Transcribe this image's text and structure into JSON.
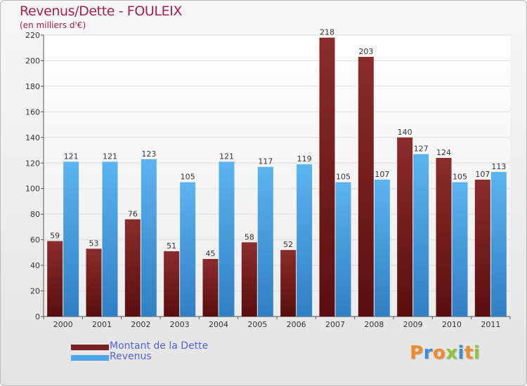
{
  "title": "Revenus/Dette - FOULEIX",
  "subtitle": "(en milliers d'€)",
  "brand": {
    "letters": [
      "P",
      "r",
      "o",
      "x",
      "i",
      "t",
      "i"
    ],
    "colors": [
      "#f08a2b",
      "#3a8ed8",
      "#f08a2b",
      "#8cc63f",
      "#3a8ed8",
      "#f08a2b",
      "#8cc63f"
    ]
  },
  "colors": {
    "dette": "#7a2020",
    "revenus": "#4ea6e8",
    "title": "#a4204d",
    "legend_text": "#5262d8"
  },
  "chart_data": {
    "type": "bar",
    "categories": [
      "2000",
      "2001",
      "2002",
      "2003",
      "2004",
      "2005",
      "2006",
      "2007",
      "2008",
      "2009",
      "2010",
      "2011"
    ],
    "series": [
      {
        "name": "Montant de la Dette",
        "color": "#7a2020",
        "values": [
          59,
          53,
          76,
          51,
          45,
          58,
          52,
          218,
          203,
          140,
          124,
          107
        ]
      },
      {
        "name": "Revenus",
        "color": "#4ea6e8",
        "values": [
          121,
          121,
          123,
          105,
          121,
          117,
          119,
          105,
          107,
          127,
          105,
          113
        ]
      }
    ],
    "ylim": [
      0,
      220
    ],
    "yticks": [
      0,
      20,
      40,
      60,
      80,
      100,
      120,
      140,
      160,
      180,
      200,
      220
    ],
    "grid": true,
    "legend": "bottom-left"
  }
}
